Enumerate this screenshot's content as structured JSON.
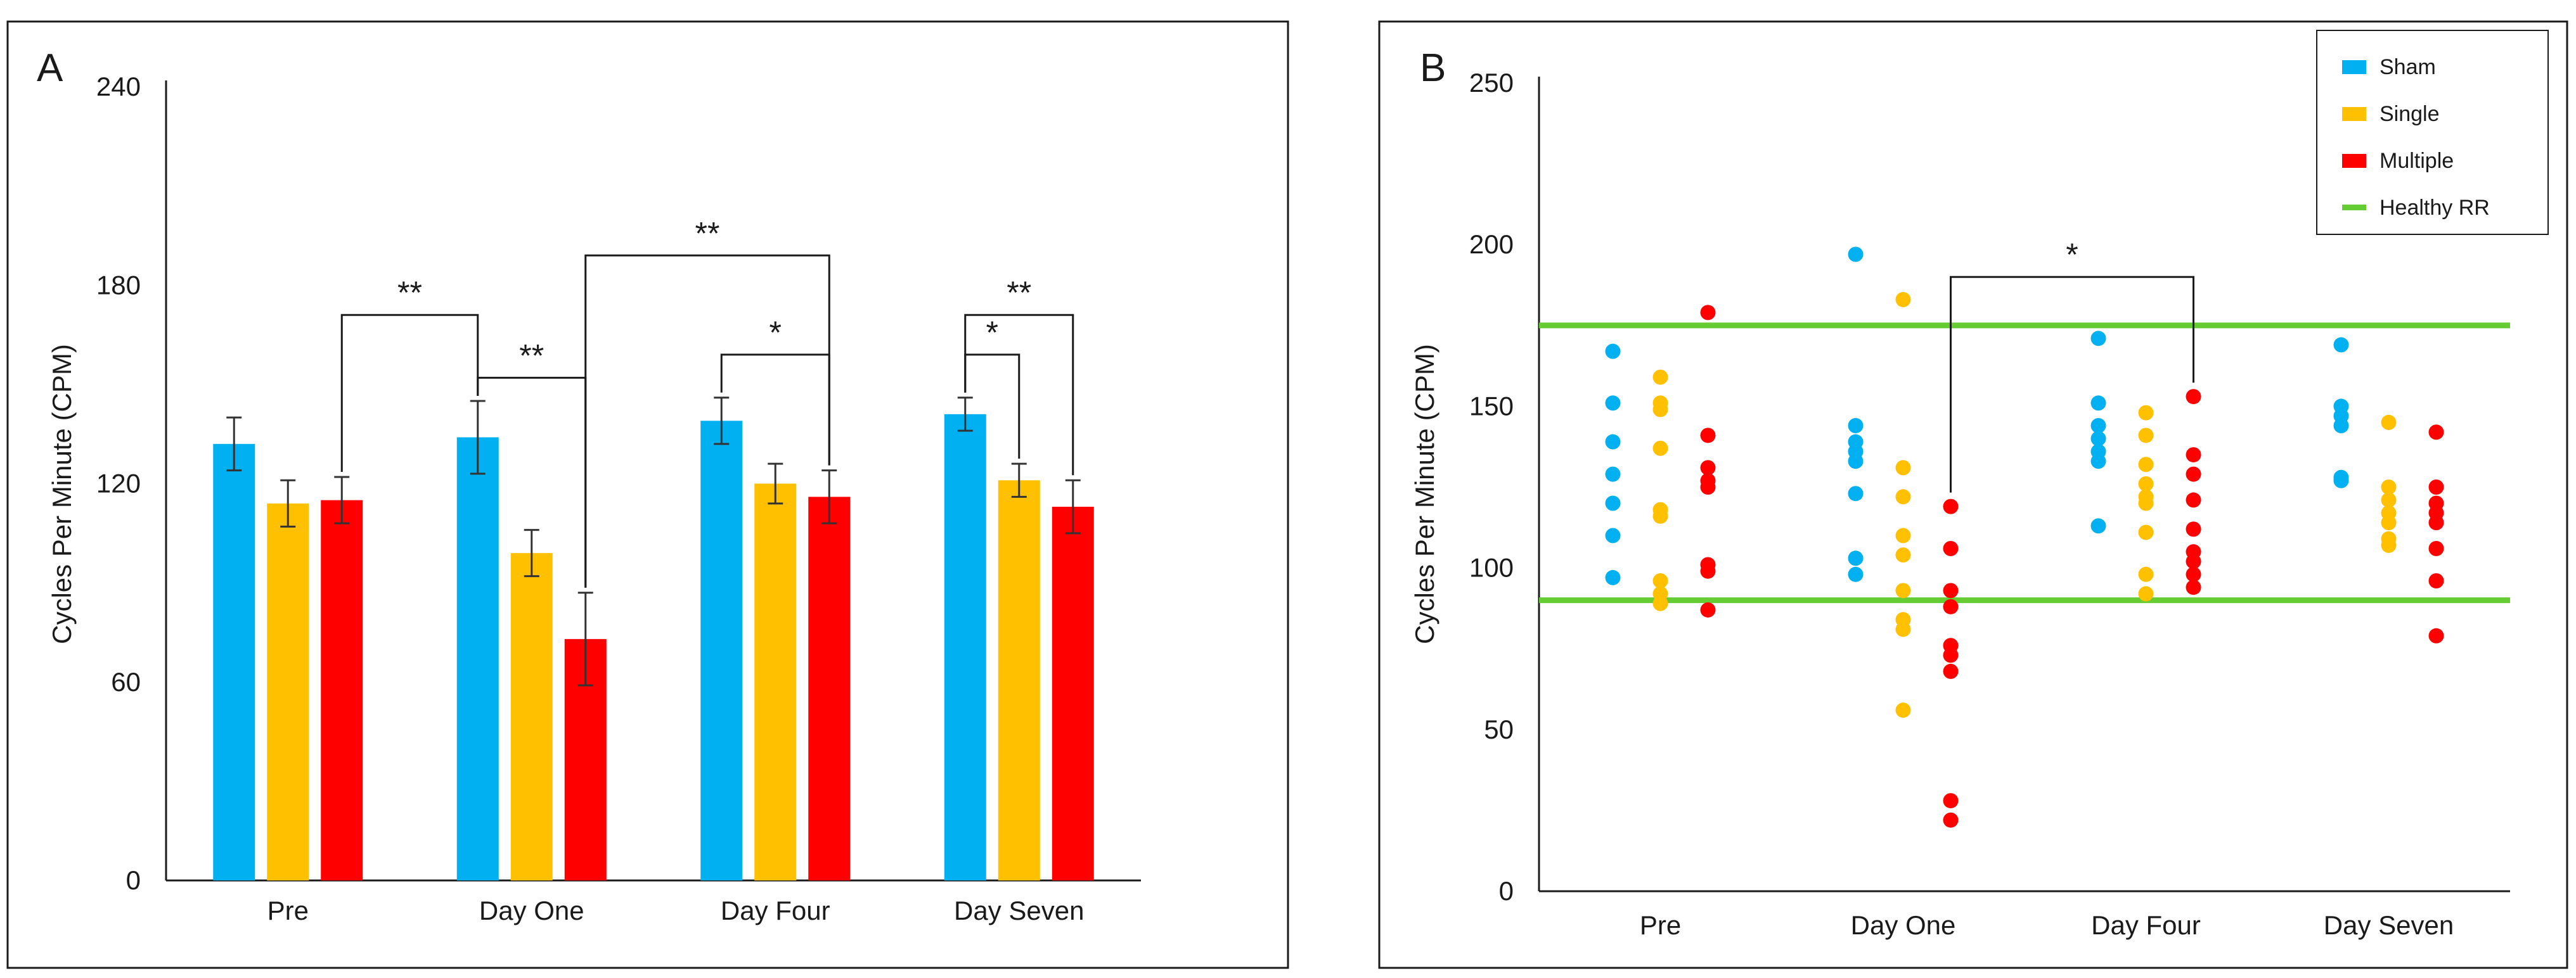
{
  "chart_data": [
    {
      "panel_label": "A",
      "type": "bar",
      "ylabel": "Cycles Per Minute (CPM)",
      "ylim": [
        0,
        240
      ],
      "yticks": [
        "0",
        "60",
        "120",
        "180",
        "240"
      ],
      "categories": [
        "Pre",
        "Day One",
        "Day Four",
        "Day Seven"
      ],
      "series": [
        {
          "values": [
            132,
            134,
            139,
            141
          ],
          "errors": [
            8,
            11,
            7,
            5
          ],
          "color": "#00B0F0"
        },
        {
          "values": [
            114,
            99,
            120,
            121
          ],
          "errors": [
            7,
            7,
            6,
            5
          ],
          "color": "#FFC000"
        },
        {
          "values": [
            115,
            73,
            116,
            113
          ],
          "errors": [
            7,
            14,
            8,
            8
          ],
          "color": "#FF0000"
        }
      ],
      "significance": [
        {
          "label": "**",
          "from": [
            1,
            0
          ],
          "to": [
            0,
            2
          ],
          "level": 171
        },
        {
          "label": "**",
          "from": [
            1,
            2
          ],
          "to": [
            2,
            2
          ],
          "level": 189
        },
        {
          "label": "**",
          "from": [
            1,
            0
          ],
          "to": [
            1,
            2
          ],
          "level": 152
        },
        {
          "label": "*",
          "from": [
            2,
            0
          ],
          "to": [
            2,
            2
          ],
          "level": 159
        },
        {
          "label": "*",
          "from": [
            3,
            0
          ],
          "to": [
            3,
            1
          ],
          "level": 159
        },
        {
          "label": "**",
          "from": [
            3,
            0
          ],
          "to": [
            3,
            2
          ],
          "level": 171
        }
      ],
      "grid": false,
      "legend": "none"
    },
    {
      "panel_label": "B",
      "type": "scatter",
      "ylabel": "Cycles Per Minute (CPM)",
      "ylim": [
        0,
        250
      ],
      "yticks": [
        "0",
        "50",
        "100",
        "150",
        "200",
        "250"
      ],
      "categories": [
        "Pre",
        "Day One",
        "Day Four",
        "Day Seven"
      ],
      "series": [
        {
          "name": "Sham",
          "color": "#00B0F0",
          "points": [
            [
              167,
              151,
              139,
              129,
              120,
              110,
              97
            ],
            [
              197,
              144,
              139,
              136,
              133,
              123,
              103,
              98
            ],
            [
              171,
              151,
              144,
              140,
              136,
              133,
              113
            ],
            [
              169,
              150,
              147,
              144,
              128,
              127
            ]
          ]
        },
        {
          "name": "Single",
          "color": "#FFC000",
          "points": [
            [
              159,
              151,
              149,
              137,
              118,
              116,
              96,
              92,
              89
            ],
            [
              183,
              131,
              122,
              110,
              104,
              93,
              84,
              81,
              56
            ],
            [
              148,
              141,
              132,
              126,
              122,
              120,
              111,
              98,
              92
            ],
            [
              145,
              125,
              121,
              117,
              114,
              109,
              107
            ]
          ]
        },
        {
          "name": "Multiple",
          "color": "#FF0000",
          "points": [
            [
              179,
              141,
              131,
              127,
              125,
              101,
              99,
              87
            ],
            [
              119,
              106,
              93,
              88,
              76,
              73,
              68,
              28,
              22
            ],
            [
              153,
              135,
              129,
              121,
              112,
              105,
              102,
              98,
              94
            ],
            [
              142,
              125,
              120,
              117,
              114,
              106,
              96,
              79
            ]
          ]
        }
      ],
      "reference_lines": [
        {
          "name": "Healthy RR",
          "color": "#66CC33",
          "values": [
            175,
            90
          ]
        }
      ],
      "significance": [
        {
          "label": "*",
          "from": [
            1,
            2
          ],
          "to": [
            2,
            2
          ],
          "level": 190
        }
      ],
      "grid": false,
      "legend": "top-right"
    }
  ]
}
